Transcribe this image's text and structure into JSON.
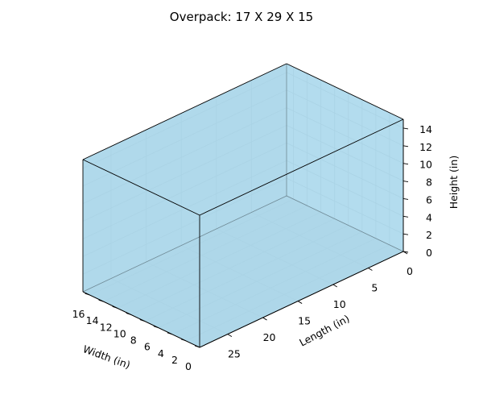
{
  "chart_data": {
    "type": "box3d",
    "title": "Overpack: 17 X 29 X 15",
    "xlabel": "Length (in)",
    "ylabel": "Width (in)",
    "zlabel": "Height (in)",
    "box": {
      "length": 29,
      "width": 17,
      "height": 15
    },
    "ticks": {
      "length": [
        0,
        5,
        10,
        15,
        20,
        25
      ],
      "width": [
        0,
        2,
        4,
        6,
        8,
        10,
        12,
        14,
        16
      ],
      "height": [
        0,
        2,
        4,
        6,
        8,
        10,
        12,
        14
      ]
    },
    "xlim": [
      0,
      29
    ],
    "ylim": [
      0,
      17
    ],
    "zlim": [
      0,
      15
    ],
    "grid": true,
    "colors": {
      "face": "#87ceeb",
      "edge": "#000000",
      "pane_right": "#f2f2f2",
      "pane_back": "#ebebeb",
      "pane_floor": "#e6e6e6",
      "grid": "#dcdcdc"
    }
  }
}
